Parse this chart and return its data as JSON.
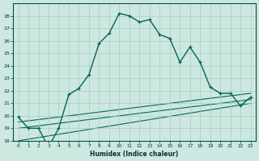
{
  "xlabel": "Humidex (Indice chaleur)",
  "xlim": [
    -0.5,
    23.5
  ],
  "ylim": [
    18,
    29
  ],
  "yticks": [
    18,
    19,
    20,
    21,
    22,
    23,
    24,
    25,
    26,
    27,
    28
  ],
  "xticks": [
    0,
    1,
    2,
    3,
    4,
    5,
    6,
    7,
    8,
    9,
    10,
    11,
    12,
    13,
    14,
    15,
    16,
    17,
    18,
    19,
    20,
    21,
    22,
    23
  ],
  "background_color": "#cce8e0",
  "grid_color": "#aaccC4",
  "line_color": "#006655",
  "main_x": [
    0,
    1,
    2,
    3,
    4,
    5,
    6,
    7,
    8,
    9,
    10,
    11,
    12,
    13,
    14,
    15,
    16,
    17,
    18,
    19,
    20,
    21,
    22,
    23
  ],
  "main_y": [
    19.9,
    19.0,
    19.0,
    17.5,
    19.0,
    21.7,
    22.2,
    23.3,
    25.8,
    26.6,
    28.2,
    28.0,
    27.5,
    27.7,
    26.5,
    26.2,
    24.3,
    25.5,
    24.3,
    22.3,
    21.8,
    21.8,
    20.8,
    21.5
  ],
  "line2_x": [
    0,
    23
  ],
  "line2_y": [
    19.5,
    21.8
  ],
  "line3_x": [
    0,
    23
  ],
  "line3_y": [
    19.0,
    21.3
  ],
  "line4_x": [
    0,
    23
  ],
  "line4_y": [
    18.0,
    21.0
  ]
}
